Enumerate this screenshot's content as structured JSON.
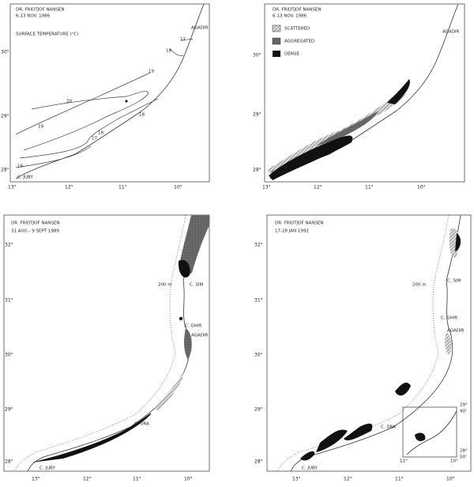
{
  "panels": [
    {
      "title": "DR. FRIDTJOF NANSEN",
      "date": "6-13 NOV. 1986",
      "subtitle": "SURFACE TEMPERATURE (°C)",
      "places": [
        "AGADIR",
        "C. JUBY"
      ],
      "isotherms": [
        "17",
        "18",
        "19",
        "20",
        "19",
        "18",
        "17",
        "16",
        "18"
      ],
      "lat": [
        "30°",
        "29°",
        "28°"
      ],
      "lon": [
        "13°",
        "12°",
        "11°",
        "10°"
      ]
    },
    {
      "title": "DR. FRIDTJOF NANSEN",
      "date": "6-13 NOV. 1986",
      "legend": [
        "SCATTERED",
        "AGGREGATED",
        "DENSE"
      ],
      "places": [
        "AGADIR",
        "C. JUBY"
      ],
      "lat": [
        "30°",
        "29°",
        "28°"
      ],
      "lon": [
        "13°",
        "12°",
        "11°",
        "10°"
      ]
    },
    {
      "title": "DR. FRIDTJOF NANSEN",
      "date": "31 AUG.- 9 SEPT 1989",
      "places": [
        "200 m",
        "C. SIM",
        "C. GHIR",
        "AGADIR",
        "C. DRA",
        "C. JUBY"
      ],
      "lat": [
        "32°",
        "31°",
        "30°",
        "29°",
        "28°"
      ],
      "lon": [
        "13°",
        "12°",
        "11°",
        "10°"
      ]
    },
    {
      "title": "DR. FRIDTJOF NANSEN",
      "date": "17-28 JAN 1992",
      "places": [
        "200 m",
        "C. SIM",
        "C. GHIR",
        "AGADIR",
        "C. DRA",
        "C. JUBY"
      ],
      "inset": [
        "29°",
        "40'",
        "28°",
        "50'",
        "11°",
        "10°"
      ],
      "lat": [
        "32°",
        "31°",
        "30°",
        "29°",
        "28°"
      ],
      "lon": [
        "13°",
        "12°",
        "11°",
        "10°"
      ]
    }
  ]
}
